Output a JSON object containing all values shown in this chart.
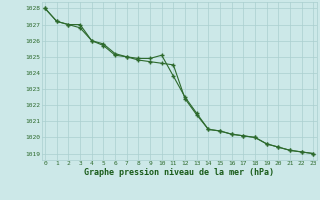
{
  "line1_x": [
    0,
    1,
    2,
    3,
    4,
    5,
    6,
    7,
    8,
    9,
    10,
    11,
    12,
    13,
    14,
    15,
    16,
    17,
    18,
    19,
    20,
    21,
    22,
    23
  ],
  "line1_y": [
    1028.0,
    1027.2,
    1027.0,
    1027.0,
    1026.0,
    1025.7,
    1025.1,
    1025.0,
    1024.9,
    1024.9,
    1025.1,
    1023.8,
    1022.5,
    1021.5,
    1020.5,
    1020.4,
    1020.2,
    1020.1,
    1020.0,
    1019.6,
    1019.4,
    1019.2,
    1019.1,
    1019.0
  ],
  "line2_x": [
    0,
    1,
    2,
    3,
    4,
    5,
    6,
    7,
    8,
    9,
    10,
    11,
    12,
    13,
    14,
    15,
    16,
    17,
    18,
    19,
    20,
    21,
    22,
    23
  ],
  "line2_y": [
    1028.0,
    1027.2,
    1027.0,
    1026.8,
    1026.0,
    1025.8,
    1025.2,
    1025.0,
    1024.8,
    1024.7,
    1024.6,
    1024.5,
    1022.4,
    1021.4,
    1020.5,
    1020.4,
    1020.2,
    1020.1,
    1020.0,
    1019.6,
    1019.4,
    1019.2,
    1019.1,
    1019.0
  ],
  "line_color": "#2d6a2d",
  "bg_color": "#cce8e8",
  "grid_color": "#aacfcf",
  "xlabel": "Graphe pression niveau de la mer (hPa)",
  "xlabel_color": "#1a5c1a",
  "ylabel_ticks": [
    1019,
    1020,
    1021,
    1022,
    1023,
    1024,
    1025,
    1026,
    1027,
    1028
  ],
  "xticks": [
    0,
    1,
    2,
    3,
    4,
    5,
    6,
    7,
    8,
    9,
    10,
    11,
    12,
    13,
    14,
    15,
    16,
    17,
    18,
    19,
    20,
    21,
    22,
    23
  ],
  "ylim": [
    1018.6,
    1028.4
  ],
  "xlim": [
    -0.3,
    23.3
  ]
}
